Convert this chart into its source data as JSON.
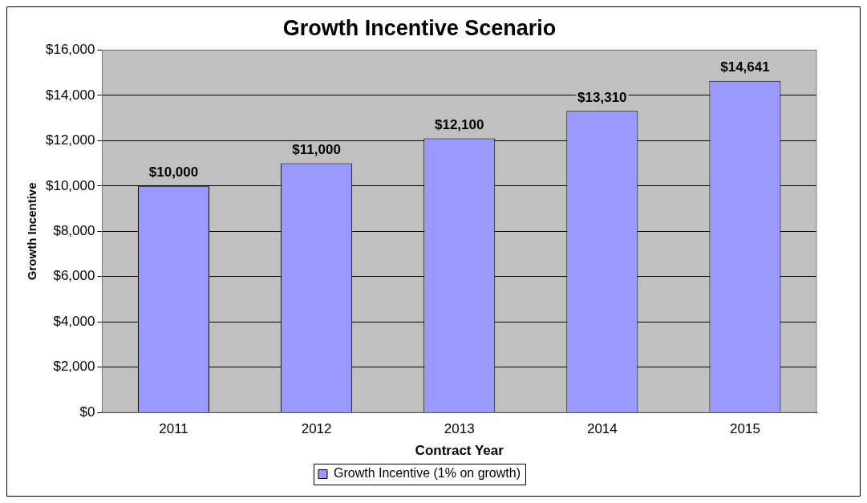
{
  "chart_data": {
    "type": "bar",
    "title": "Growth Incentive Scenario",
    "xlabel": "Contract Year",
    "ylabel": "Growth Incentive",
    "categories": [
      "2011",
      "2012",
      "2013",
      "2014",
      "2015"
    ],
    "series": [
      {
        "name": "Growth Incentive (1% on growth)",
        "color": "#9999ff",
        "values": [
          10000,
          11000,
          12100,
          13310,
          14641
        ],
        "value_labels": [
          "$10,000",
          "$11,000",
          "$12,100",
          "$13,310",
          "$14,641"
        ]
      }
    ],
    "ylim": [
      0,
      16000
    ],
    "yticks": [
      {
        "value": 0,
        "label": "$0"
      },
      {
        "value": 2000,
        "label": "$2,000"
      },
      {
        "value": 4000,
        "label": "$4,000"
      },
      {
        "value": 6000,
        "label": "$6,000"
      },
      {
        "value": 8000,
        "label": "$8,000"
      },
      {
        "value": 10000,
        "label": "$10,000"
      },
      {
        "value": 12000,
        "label": "$12,000"
      },
      {
        "value": 14000,
        "label": "$14,000"
      },
      {
        "value": 16000,
        "label": "$16,000"
      }
    ],
    "grid": "y",
    "legend": "bottom"
  }
}
